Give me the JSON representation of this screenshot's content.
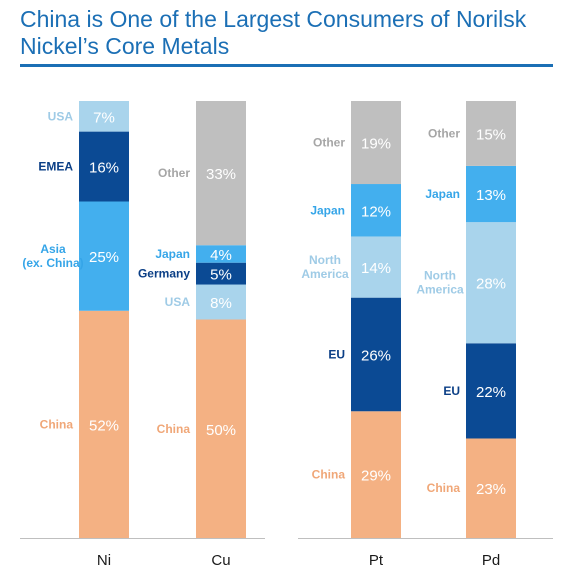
{
  "title": "China is One of the Largest Consumers of Norilsk Nickel’s Core Metals",
  "colors": {
    "china": "#f4b183",
    "usa": "#a9d4ec",
    "emea": "#0b4a94",
    "asia": "#43afee",
    "other": "#bfbfbf",
    "japan": "#43afee",
    "germany": "#0b4a94",
    "north_america": "#a9d4ec",
    "eu": "#0b4a94",
    "title": "#1b6fb5"
  },
  "chart_data": {
    "type": "bar",
    "stacked": true,
    "unit": "%",
    "categories": [
      "Ni",
      "Cu",
      "Pt",
      "Pd"
    ],
    "bars": [
      {
        "category": "Ni",
        "segments": [
          {
            "label": "China",
            "value": 52,
            "display": "52%",
            "color_key": "china"
          },
          {
            "label": "Asia\n(ex. China)",
            "value": 25,
            "display": "25%",
            "color_key": "asia"
          },
          {
            "label": "EMEA",
            "value": 16,
            "display": "16%",
            "color_key": "emea"
          },
          {
            "label": "USA",
            "value": 7,
            "display": "7%",
            "color_key": "usa"
          }
        ]
      },
      {
        "category": "Cu",
        "segments": [
          {
            "label": "China",
            "value": 50,
            "display": "50%",
            "color_key": "china"
          },
          {
            "label": "USA",
            "value": 8,
            "display": "8%",
            "color_key": "usa"
          },
          {
            "label": "Germany",
            "value": 5,
            "display": "5%",
            "color_key": "germany"
          },
          {
            "label": "Japan",
            "value": 4,
            "display": "4%",
            "color_key": "japan"
          },
          {
            "label": "Other",
            "value": 33,
            "display": "33%",
            "color_key": "other"
          }
        ]
      },
      {
        "category": "Pt",
        "segments": [
          {
            "label": "China",
            "value": 29,
            "display": "29%",
            "color_key": "china"
          },
          {
            "label": "EU",
            "value": 26,
            "display": "26%",
            "color_key": "eu"
          },
          {
            "label": "North\nAmerica",
            "value": 14,
            "display": "14%",
            "color_key": "north_america"
          },
          {
            "label": "Japan",
            "value": 12,
            "display": "12%",
            "color_key": "japan"
          },
          {
            "label": "Other",
            "value": 19,
            "display": "19%",
            "color_key": "other"
          }
        ]
      },
      {
        "category": "Pd",
        "segments": [
          {
            "label": "China",
            "value": 23,
            "display": "23%",
            "color_key": "china"
          },
          {
            "label": "EU",
            "value": 22,
            "display": "22%",
            "color_key": "eu"
          },
          {
            "label": "North\nAmerica",
            "value": 28,
            "display": "28%",
            "color_key": "north_america"
          },
          {
            "label": "Japan",
            "value": 13,
            "display": "13%",
            "color_key": "japan"
          },
          {
            "label": "Other",
            "value": 15,
            "display": "15%",
            "color_key": "other"
          }
        ]
      }
    ],
    "ylim": [
      0,
      100
    ],
    "legend": "none",
    "grid": false
  }
}
